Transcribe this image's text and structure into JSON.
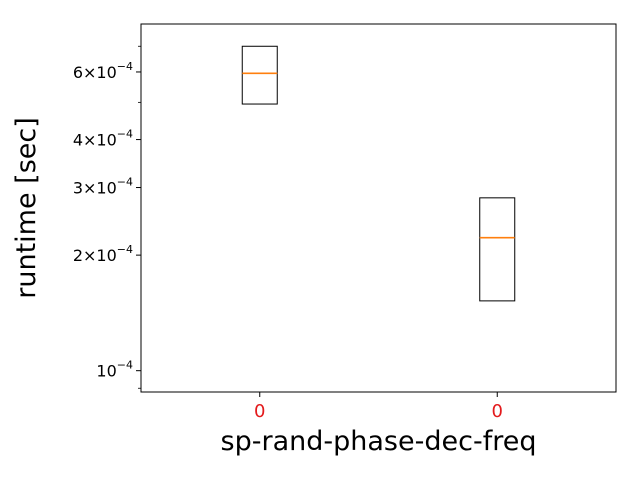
{
  "chart_data": {
    "type": "boxplot",
    "xlabel": "sp-rand-phase-dec-freq",
    "ylabel": "runtime [sec]",
    "yscale": "log",
    "ylim": [
      8.8e-05,
      0.0008
    ],
    "categories": [
      "0",
      "0"
    ],
    "category_label_color": "#e31a1c",
    "box_color": "#000000",
    "median_color": "#ff7f0e",
    "boxes": [
      {
        "label": "0",
        "q1": 0.000495,
        "median": 0.000595,
        "q3": 0.0007
      },
      {
        "label": "0",
        "q1": 0.000152,
        "median": 0.000222,
        "q3": 0.000282
      }
    ],
    "yticks": [
      {
        "value": 0.0001,
        "mantissa": "",
        "exp": "−4",
        "base": "10"
      },
      {
        "value": 0.0002,
        "mantissa": "2×",
        "exp": "−4",
        "base": "10"
      },
      {
        "value": 0.0003,
        "mantissa": "3×",
        "exp": "−4",
        "base": "10"
      },
      {
        "value": 0.0004,
        "mantissa": "4×",
        "exp": "−4",
        "base": "10"
      },
      {
        "value": 0.0006,
        "mantissa": "6×",
        "exp": "−4",
        "base": "10"
      }
    ],
    "minor_yticks": [
      9e-05,
      0.0005,
      0.0007
    ]
  }
}
